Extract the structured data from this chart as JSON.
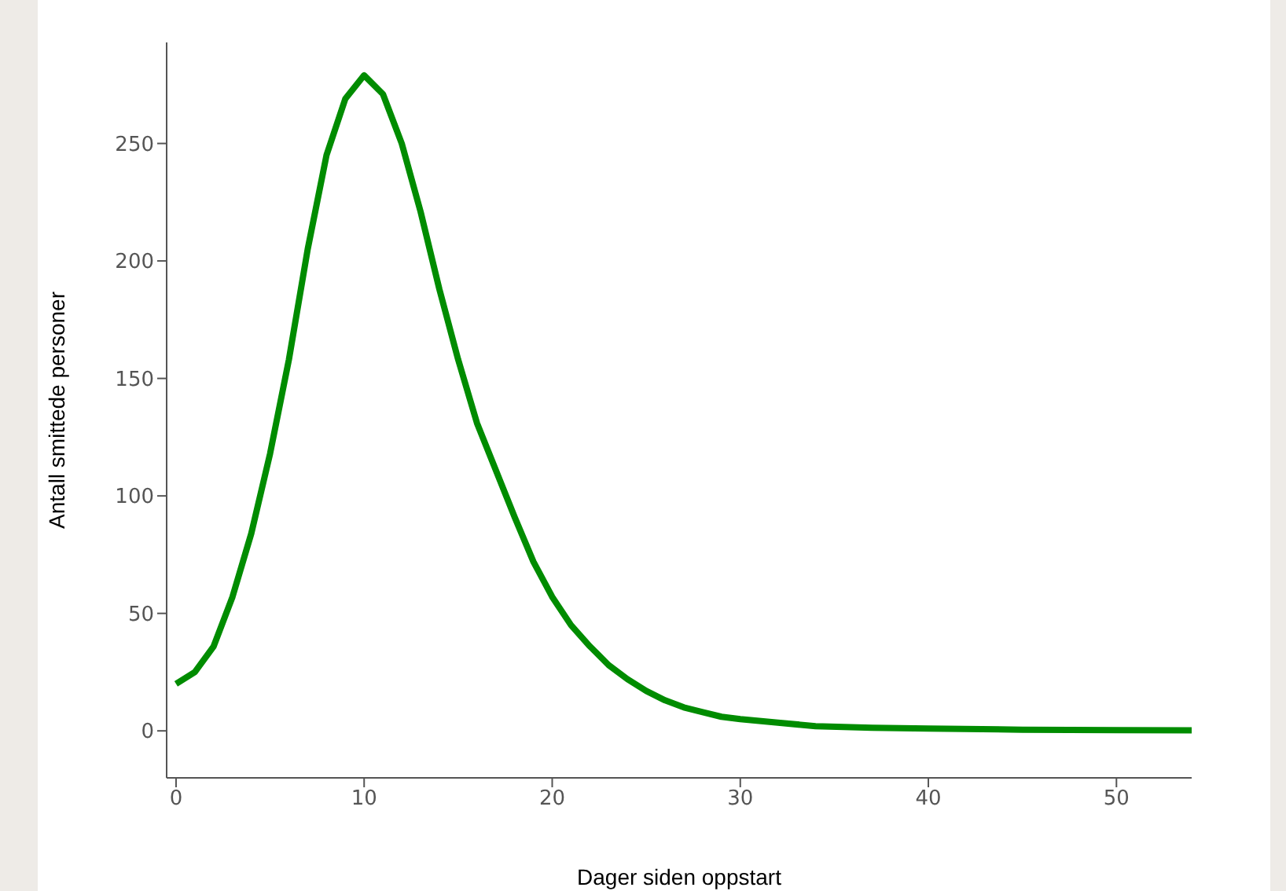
{
  "chart_data": {
    "type": "line",
    "xlabel": "Dager siden oppstart",
    "ylabel": "Antall smittede personer",
    "x": [
      0,
      1,
      2,
      3,
      4,
      5,
      6,
      7,
      8,
      9,
      10,
      11,
      12,
      13,
      14,
      15,
      16,
      17,
      18,
      19,
      20,
      21,
      22,
      23,
      24,
      25,
      26,
      27,
      28,
      29,
      30,
      32,
      34,
      37,
      40,
      45,
      50,
      54
    ],
    "series": [
      {
        "color": "#008c00",
        "values": [
          20,
          25,
          36,
          57,
          84,
          118,
          158,
          205,
          245,
          269,
          279,
          271,
          250,
          221,
          188,
          158,
          131,
          111,
          91,
          72,
          57,
          45,
          36,
          28,
          22,
          17,
          13,
          10,
          8,
          6,
          5,
          3.5,
          2,
          1.3,
          1,
          0.5,
          0.3,
          0.2
        ]
      }
    ],
    "xlim": [
      -0.5,
      54
    ],
    "xticks": [
      0,
      10,
      20,
      30,
      40,
      50
    ],
    "ylim": [
      -20,
      293
    ],
    "yticks": [
      0,
      50,
      100,
      150,
      200,
      250
    ],
    "grid": false,
    "legend": false,
    "marker": "none",
    "line_style": "solid"
  }
}
